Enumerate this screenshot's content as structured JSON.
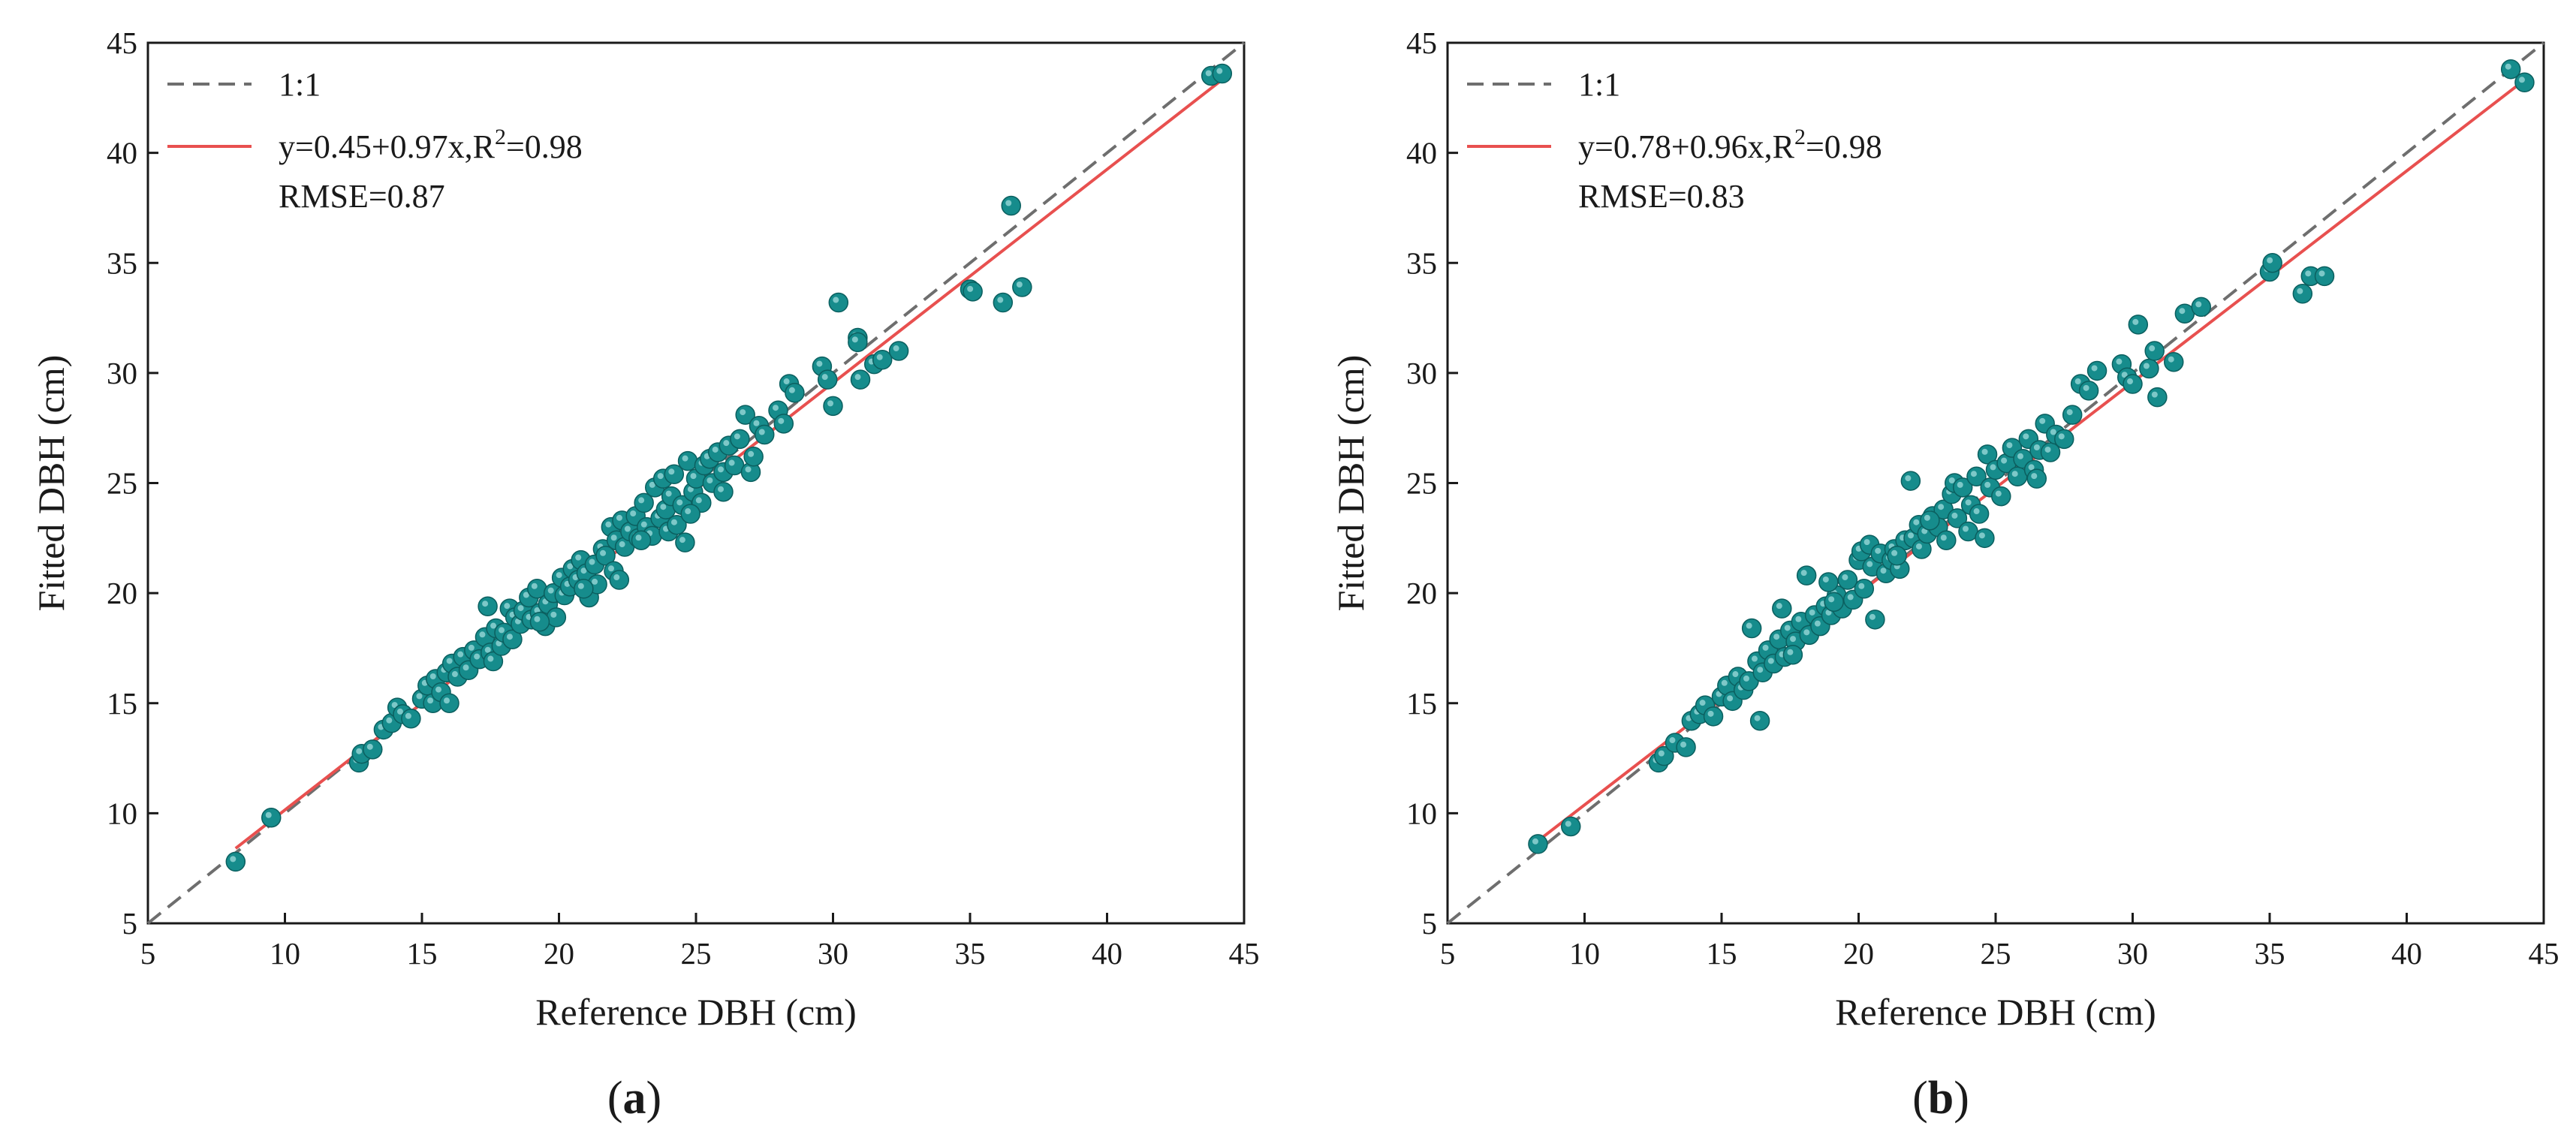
{
  "chart_data": [
    {
      "type": "scatter",
      "panel_label_parts": [
        "(",
        "a",
        ")"
      ],
      "xlabel": "Reference DBH (cm)",
      "ylabel": "Fitted DBH (cm)",
      "xlim": [
        5,
        45
      ],
      "ylim": [
        5,
        45
      ],
      "xticks": [
        "5",
        "10",
        "15",
        "20",
        "25",
        "30",
        "35",
        "40",
        "45"
      ],
      "yticks": [
        "5",
        "10",
        "15",
        "20",
        "25",
        "30",
        "35",
        "40",
        "45"
      ],
      "legend_position": "top-left",
      "identity_line": {
        "label": "1:1",
        "color": "#6e6e6e"
      },
      "fit_line": {
        "intercept": 0.45,
        "slope": 0.97,
        "x_range": [
          8.2,
          44.2
        ],
        "color": "#e8504f",
        "label_prefix": "y=0.45+0.97x,R",
        "label_sup": "2",
        "label_suffix": "=0.98"
      },
      "annotation": "RMSE=0.87",
      "marker_color": "#168c8c",
      "points": [
        [
          8.2,
          7.8
        ],
        [
          9.5,
          9.8
        ],
        [
          12.7,
          12.3
        ],
        [
          12.8,
          12.7
        ],
        [
          13.2,
          12.9
        ],
        [
          13.6,
          13.8
        ],
        [
          13.9,
          14.1
        ],
        [
          14.1,
          14.8
        ],
        [
          14.3,
          14.5
        ],
        [
          14.6,
          14.3
        ],
        [
          15.0,
          15.2
        ],
        [
          15.2,
          15.8
        ],
        [
          15.4,
          15.0
        ],
        [
          15.5,
          16.1
        ],
        [
          15.7,
          15.5
        ],
        [
          15.9,
          16.4
        ],
        [
          16.0,
          15.0
        ],
        [
          16.1,
          16.8
        ],
        [
          16.3,
          16.2
        ],
        [
          16.5,
          17.1
        ],
        [
          16.7,
          16.5
        ],
        [
          16.9,
          17.4
        ],
        [
          17.1,
          17.0
        ],
        [
          17.3,
          18.0
        ],
        [
          17.4,
          19.4
        ],
        [
          17.5,
          17.3
        ],
        [
          17.6,
          16.9
        ],
        [
          17.7,
          18.4
        ],
        [
          17.9,
          17.6
        ],
        [
          18.0,
          18.2
        ],
        [
          18.2,
          19.3
        ],
        [
          18.3,
          17.9
        ],
        [
          18.4,
          18.9
        ],
        [
          18.6,
          18.6
        ],
        [
          18.7,
          19.2
        ],
        [
          18.9,
          19.8
        ],
        [
          19.0,
          18.8
        ],
        [
          19.2,
          20.2
        ],
        [
          19.3,
          19.1
        ],
        [
          19.5,
          18.5
        ],
        [
          19.6,
          19.5
        ],
        [
          19.8,
          20.0
        ],
        [
          19.9,
          18.9
        ],
        [
          20.1,
          20.7
        ],
        [
          20.2,
          19.9
        ],
        [
          20.4,
          20.3
        ],
        [
          20.5,
          21.1
        ],
        [
          20.7,
          20.6
        ],
        [
          20.8,
          21.5
        ],
        [
          21.0,
          20.9
        ],
        [
          21.1,
          19.8
        ],
        [
          21.3,
          21.3
        ],
        [
          21.4,
          20.4
        ],
        [
          21.6,
          22.0
        ],
        [
          21.7,
          21.7
        ],
        [
          21.9,
          23.0
        ],
        [
          22.0,
          21.0
        ],
        [
          22.1,
          22.4
        ],
        [
          22.2,
          20.6
        ],
        [
          22.3,
          23.3
        ],
        [
          22.4,
          22.1
        ],
        [
          22.6,
          22.8
        ],
        [
          22.8,
          23.5
        ],
        [
          22.9,
          22.5
        ],
        [
          23.1,
          24.1
        ],
        [
          23.2,
          23.0
        ],
        [
          23.4,
          22.6
        ],
        [
          23.5,
          24.8
        ],
        [
          23.7,
          23.4
        ],
        [
          23.8,
          25.2
        ],
        [
          23.9,
          23.8
        ],
        [
          24.0,
          22.8
        ],
        [
          24.1,
          24.4
        ],
        [
          24.2,
          25.4
        ],
        [
          24.3,
          23.1
        ],
        [
          24.5,
          24.0
        ],
        [
          24.6,
          22.3
        ],
        [
          24.7,
          26.0
        ],
        [
          24.9,
          24.6
        ],
        [
          25.0,
          25.2
        ],
        [
          25.2,
          24.1
        ],
        [
          25.3,
          25.8
        ],
        [
          25.5,
          26.1
        ],
        [
          25.6,
          25.0
        ],
        [
          25.8,
          26.4
        ],
        [
          26.0,
          25.5
        ],
        [
          26.2,
          26.7
        ],
        [
          26.4,
          25.8
        ],
        [
          26.6,
          27.0
        ],
        [
          26.8,
          28.1
        ],
        [
          27.0,
          25.5
        ],
        [
          27.1,
          26.2
        ],
        [
          27.3,
          27.6
        ],
        [
          27.5,
          27.2
        ],
        [
          28.0,
          28.3
        ],
        [
          28.2,
          27.7
        ],
        [
          28.4,
          29.5
        ],
        [
          28.6,
          29.1
        ],
        [
          29.6,
          30.3
        ],
        [
          29.8,
          29.7
        ],
        [
          30.0,
          28.5
        ],
        [
          30.2,
          33.2
        ],
        [
          30.9,
          31.6
        ],
        [
          30.9,
          31.4
        ],
        [
          31.0,
          29.7
        ],
        [
          31.5,
          30.4
        ],
        [
          31.8,
          30.6
        ],
        [
          32.4,
          31.0
        ],
        [
          35.0,
          33.8
        ],
        [
          35.1,
          33.7
        ],
        [
          36.2,
          33.2
        ],
        [
          36.5,
          37.6
        ],
        [
          36.9,
          33.9
        ],
        [
          43.8,
          43.5
        ],
        [
          44.2,
          43.6
        ],
        [
          26.0,
          24.6
        ],
        [
          24.8,
          23.6
        ],
        [
          23.0,
          22.4
        ],
        [
          20.9,
          20.2
        ],
        [
          19.3,
          18.7
        ]
      ]
    },
    {
      "type": "scatter",
      "panel_label_parts": [
        "(",
        "b",
        ")"
      ],
      "xlabel": "Reference DBH (cm)",
      "ylabel": "Fitted DBH (cm)",
      "xlim": [
        5,
        45
      ],
      "ylim": [
        5,
        45
      ],
      "xticks": [
        "5",
        "10",
        "15",
        "20",
        "25",
        "30",
        "35",
        "40",
        "45"
      ],
      "yticks": [
        "5",
        "10",
        "15",
        "20",
        "25",
        "30",
        "35",
        "40",
        "45"
      ],
      "legend_position": "top-left",
      "identity_line": {
        "label": "1:1",
        "color": "#6e6e6e"
      },
      "fit_line": {
        "intercept": 0.78,
        "slope": 0.96,
        "x_range": [
          8.2,
          44.2
        ],
        "color": "#e8504f",
        "label_prefix": "y=0.78+0.96x,R",
        "label_sup": "2",
        "label_suffix": "=0.98"
      },
      "annotation": "RMSE=0.83",
      "marker_color": "#168c8c",
      "points": [
        [
          8.3,
          8.6
        ],
        [
          9.5,
          9.4
        ],
        [
          12.7,
          12.3
        ],
        [
          12.9,
          12.6
        ],
        [
          13.3,
          13.2
        ],
        [
          13.7,
          13.0
        ],
        [
          13.9,
          14.2
        ],
        [
          14.2,
          14.5
        ],
        [
          14.4,
          14.9
        ],
        [
          14.7,
          14.4
        ],
        [
          15.0,
          15.3
        ],
        [
          15.2,
          15.8
        ],
        [
          15.4,
          15.1
        ],
        [
          15.6,
          16.2
        ],
        [
          15.8,
          15.6
        ],
        [
          16.0,
          16.0
        ],
        [
          16.1,
          18.4
        ],
        [
          16.3,
          16.9
        ],
        [
          16.4,
          14.2
        ],
        [
          16.5,
          16.4
        ],
        [
          16.7,
          17.4
        ],
        [
          16.9,
          16.8
        ],
        [
          17.1,
          17.9
        ],
        [
          17.2,
          19.3
        ],
        [
          17.3,
          17.1
        ],
        [
          17.5,
          18.3
        ],
        [
          17.7,
          17.8
        ],
        [
          17.9,
          18.7
        ],
        [
          18.1,
          20.8
        ],
        [
          18.2,
          18.1
        ],
        [
          18.4,
          19.0
        ],
        [
          18.6,
          18.5
        ],
        [
          18.8,
          19.4
        ],
        [
          19.0,
          19.0
        ],
        [
          19.2,
          19.9
        ],
        [
          19.4,
          19.3
        ],
        [
          19.6,
          20.6
        ],
        [
          19.8,
          19.7
        ],
        [
          20.0,
          21.5
        ],
        [
          20.1,
          21.9
        ],
        [
          20.2,
          20.2
        ],
        [
          20.4,
          22.2
        ],
        [
          20.5,
          21.2
        ],
        [
          20.6,
          18.8
        ],
        [
          20.8,
          21.8
        ],
        [
          21.0,
          20.9
        ],
        [
          21.2,
          21.5
        ],
        [
          21.3,
          22.0
        ],
        [
          21.5,
          21.1
        ],
        [
          21.7,
          22.4
        ],
        [
          21.9,
          25.1
        ],
        [
          22.0,
          22.5
        ],
        [
          22.2,
          23.1
        ],
        [
          22.3,
          22.0
        ],
        [
          22.5,
          22.7
        ],
        [
          22.7,
          23.5
        ],
        [
          22.9,
          23.0
        ],
        [
          23.1,
          23.8
        ],
        [
          23.2,
          22.4
        ],
        [
          23.4,
          24.5
        ],
        [
          23.5,
          25.0
        ],
        [
          23.6,
          23.4
        ],
        [
          23.8,
          24.8
        ],
        [
          24.0,
          22.8
        ],
        [
          24.1,
          24.0
        ],
        [
          24.3,
          25.3
        ],
        [
          24.4,
          23.6
        ],
        [
          24.6,
          22.5
        ],
        [
          24.7,
          26.3
        ],
        [
          24.8,
          24.8
        ],
        [
          25.0,
          25.6
        ],
        [
          25.2,
          24.4
        ],
        [
          25.4,
          25.9
        ],
        [
          25.6,
          26.6
        ],
        [
          25.8,
          25.3
        ],
        [
          26.0,
          26.1
        ],
        [
          26.2,
          27.0
        ],
        [
          26.4,
          25.6
        ],
        [
          26.6,
          26.5
        ],
        [
          26.8,
          27.7
        ],
        [
          27.0,
          26.4
        ],
        [
          27.2,
          27.2
        ],
        [
          27.5,
          27.0
        ],
        [
          27.8,
          28.1
        ],
        [
          28.1,
          29.5
        ],
        [
          28.4,
          29.2
        ],
        [
          28.7,
          30.1
        ],
        [
          29.6,
          30.4
        ],
        [
          29.8,
          29.8
        ],
        [
          30.0,
          29.5
        ],
        [
          30.2,
          32.2
        ],
        [
          30.6,
          30.2
        ],
        [
          30.8,
          31.0
        ],
        [
          30.9,
          28.9
        ],
        [
          31.5,
          30.5
        ],
        [
          31.9,
          32.7
        ],
        [
          32.5,
          33.0
        ],
        [
          35.0,
          34.6
        ],
        [
          35.1,
          35.0
        ],
        [
          36.2,
          33.6
        ],
        [
          36.5,
          34.4
        ],
        [
          37.0,
          34.4
        ],
        [
          43.8,
          43.8
        ],
        [
          44.3,
          43.2
        ],
        [
          26.5,
          25.2
        ],
        [
          22.6,
          23.3
        ],
        [
          19.1,
          19.6
        ],
        [
          18.9,
          20.5
        ],
        [
          17.6,
          17.2
        ],
        [
          21.4,
          21.7
        ]
      ]
    }
  ]
}
